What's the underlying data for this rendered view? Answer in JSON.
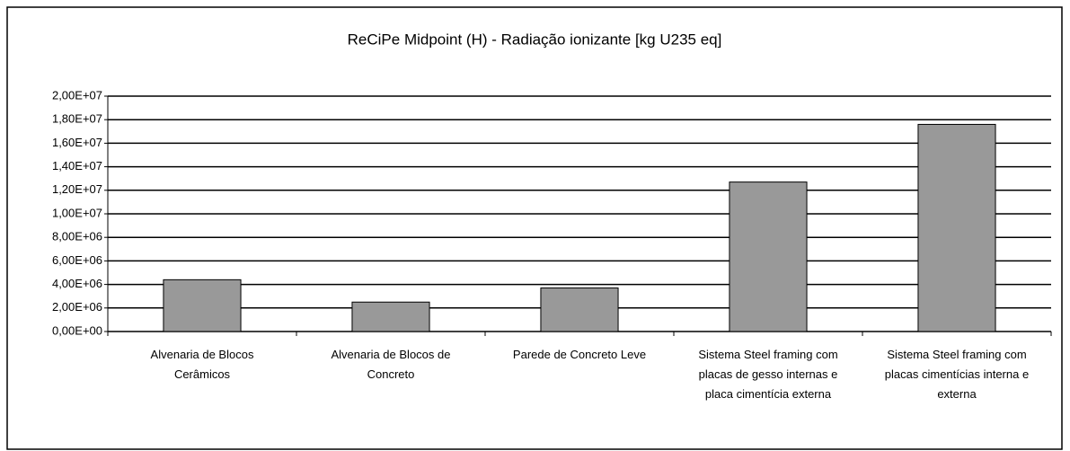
{
  "chart_data": {
    "type": "bar",
    "title": "ReCiPe Midpoint (H) - Radiação ionizante [kg U235 eq]",
    "categories": [
      "Alvenaria de Blocos Cerâmicos",
      "Alvenaria de Blocos de Concreto",
      "Parede de Concreto Leve",
      "Sistema Steel framing com placas de gesso internas e placa cimentícia externa",
      "Sistema Steel framing com placas cimentícias interna e externa"
    ],
    "values": [
      4400000,
      2500000,
      3700000,
      12700000,
      17600000
    ],
    "color": "#999999",
    "ylim": [
      0,
      20000000
    ],
    "yticks": [
      {
        "value": 0,
        "label": "0,00E+00"
      },
      {
        "value": 2000000,
        "label": "2,00E+06"
      },
      {
        "value": 4000000,
        "label": "4,00E+06"
      },
      {
        "value": 6000000,
        "label": "6,00E+06"
      },
      {
        "value": 8000000,
        "label": "8,00E+06"
      },
      {
        "value": 10000000,
        "label": "1,00E+07"
      },
      {
        "value": 12000000,
        "label": "1,20E+07"
      },
      {
        "value": 14000000,
        "label": "1,40E+07"
      },
      {
        "value": 16000000,
        "label": "1,60E+07"
      },
      {
        "value": 18000000,
        "label": "1,80E+07"
      },
      {
        "value": 20000000,
        "label": "2,00E+07"
      }
    ],
    "grid": true
  }
}
